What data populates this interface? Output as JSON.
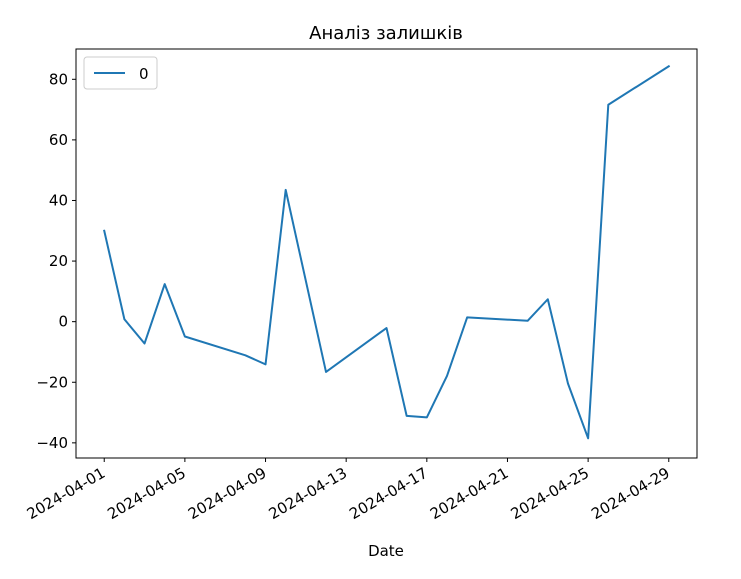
{
  "chart_data": {
    "type": "line",
    "title": "Аналіз залишків",
    "xlabel": "Date",
    "ylabel": "",
    "x_type": "date",
    "xlim": [
      "2024-03-30T14:24",
      "2024-04-30T09:36"
    ],
    "ylim": [
      -45,
      90
    ],
    "x_ticks": [
      "2024-04-01",
      "2024-04-05",
      "2024-04-09",
      "2024-04-13",
      "2024-04-17",
      "2024-04-21",
      "2024-04-25",
      "2024-04-29"
    ],
    "y_ticks": [
      -40,
      -20,
      0,
      20,
      40,
      60,
      80
    ],
    "y_tick_labels": [
      "−40",
      "−20",
      "0",
      "20",
      "40",
      "60",
      "80"
    ],
    "grid": false,
    "legend": {
      "placement": "top-left",
      "entries": [
        "0"
      ]
    },
    "series": [
      {
        "name": "0",
        "color": "#1f77b4",
        "points": [
          {
            "x": "2024-04-01",
            "y": 30.0
          },
          {
            "x": "2024-04-02",
            "y": 0.8
          },
          {
            "x": "2024-04-03",
            "y": -7.2
          },
          {
            "x": "2024-04-04",
            "y": 12.4
          },
          {
            "x": "2024-04-05",
            "y": -4.9
          },
          {
            "x": "2024-04-08",
            "y": -11.1
          },
          {
            "x": "2024-04-09",
            "y": -14.1
          },
          {
            "x": "2024-04-10",
            "y": 43.5
          },
          {
            "x": "2024-04-12",
            "y": -16.6
          },
          {
            "x": "2024-04-15",
            "y": -2.1
          },
          {
            "x": "2024-04-16",
            "y": -31.1
          },
          {
            "x": "2024-04-17",
            "y": -31.6
          },
          {
            "x": "2024-04-18",
            "y": -17.9
          },
          {
            "x": "2024-04-19",
            "y": 1.4
          },
          {
            "x": "2024-04-22",
            "y": 0.3
          },
          {
            "x": "2024-04-23",
            "y": 7.4
          },
          {
            "x": "2024-04-24",
            "y": -20.4
          },
          {
            "x": "2024-04-25",
            "y": -38.5
          },
          {
            "x": "2024-04-26",
            "y": 71.6
          },
          {
            "x": "2024-04-29",
            "y": 84.3
          }
        ]
      }
    ]
  }
}
